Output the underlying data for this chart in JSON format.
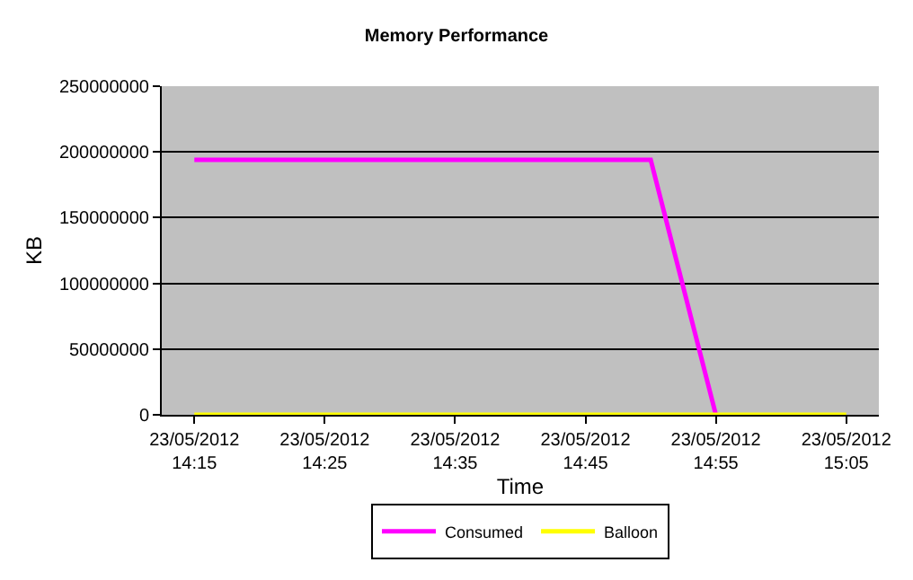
{
  "chart_data": {
    "type": "line",
    "title": "Memory Performance",
    "xlabel": "Time",
    "ylabel": "KB",
    "series": [
      {
        "name": "Consumed",
        "color": "#ff00ff",
        "x": [
          "2012-05-23T14:15",
          "2012-05-23T14:50",
          "2012-05-23T14:55"
        ],
        "values": [
          194000000,
          194000000,
          0
        ]
      },
      {
        "name": "Balloon",
        "color": "#ffff00",
        "x": [
          "2012-05-23T14:15",
          "2012-05-23T15:05"
        ],
        "values": [
          0,
          0
        ]
      }
    ],
    "xlim": [
      "2012-05-23T14:12:30",
      "2012-05-23T15:07:30"
    ],
    "xticks": [
      {
        "value": "2012-05-23T14:15",
        "label": "23/05/2012\n14:15"
      },
      {
        "value": "2012-05-23T14:25",
        "label": "23/05/2012\n14:25"
      },
      {
        "value": "2012-05-23T14:35",
        "label": "23/05/2012\n14:35"
      },
      {
        "value": "2012-05-23T14:45",
        "label": "23/05/2012\n14:45"
      },
      {
        "value": "2012-05-23T14:55",
        "label": "23/05/2012\n14:55"
      },
      {
        "value": "2012-05-23T15:05",
        "label": "23/05/2012\n15:05"
      }
    ],
    "ylim": [
      0,
      250000000
    ],
    "yticks": [
      0,
      50000000,
      100000000,
      150000000,
      200000000,
      250000000
    ],
    "grid": "y",
    "legend": "bottom",
    "marker": "none",
    "line_style": "solid"
  }
}
